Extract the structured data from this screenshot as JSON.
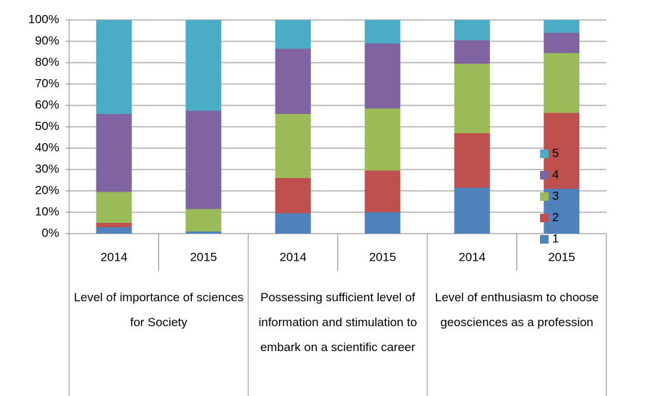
{
  "chart_data": {
    "type": "stacked_bar_100",
    "groups": [
      {
        "name": "Level of importance of sciences for Society",
        "categories": [
          "2014",
          "2015"
        ]
      },
      {
        "name": "Possessing sufficient level of information and stimulation to embark on a scientific career",
        "categories": [
          "2014",
          "2015"
        ]
      },
      {
        "name": "Level of enthusiasm to choose geosciences as a profession",
        "categories": [
          "2014",
          "2015"
        ]
      }
    ],
    "series": [
      {
        "name": "1",
        "color": "#4f81bd",
        "values": [
          3,
          1,
          9.5,
          10,
          21.5,
          21
        ]
      },
      {
        "name": "2",
        "color": "#c0504d",
        "values": [
          2,
          0,
          16.5,
          19.5,
          25.5,
          35.5
        ]
      },
      {
        "name": "3",
        "color": "#9bbb59",
        "values": [
          14.5,
          10.5,
          30,
          29,
          32.5,
          28
        ]
      },
      {
        "name": "4",
        "color": "#8064a2",
        "values": [
          36.5,
          46,
          30.5,
          30.5,
          11,
          9.5
        ]
      },
      {
        "name": "5",
        "color": "#4bacc6",
        "values": [
          44,
          42.5,
          13.5,
          11,
          9.5,
          6
        ]
      }
    ],
    "ylim": [
      0,
      100
    ],
    "yticks": [
      {
        "value": 0,
        "label": "0%"
      },
      {
        "value": 10,
        "label": "10%"
      },
      {
        "value": 20,
        "label": "20%"
      },
      {
        "value": 30,
        "label": "30%"
      },
      {
        "value": 40,
        "label": "40%"
      },
      {
        "value": 50,
        "label": "50%"
      },
      {
        "value": 60,
        "label": "60%"
      },
      {
        "value": 70,
        "label": "70%"
      },
      {
        "value": 80,
        "label": "80%"
      },
      {
        "value": 90,
        "label": "90%"
      },
      {
        "value": 100,
        "label": "100%"
      }
    ],
    "grid": true,
    "legend": "right"
  }
}
